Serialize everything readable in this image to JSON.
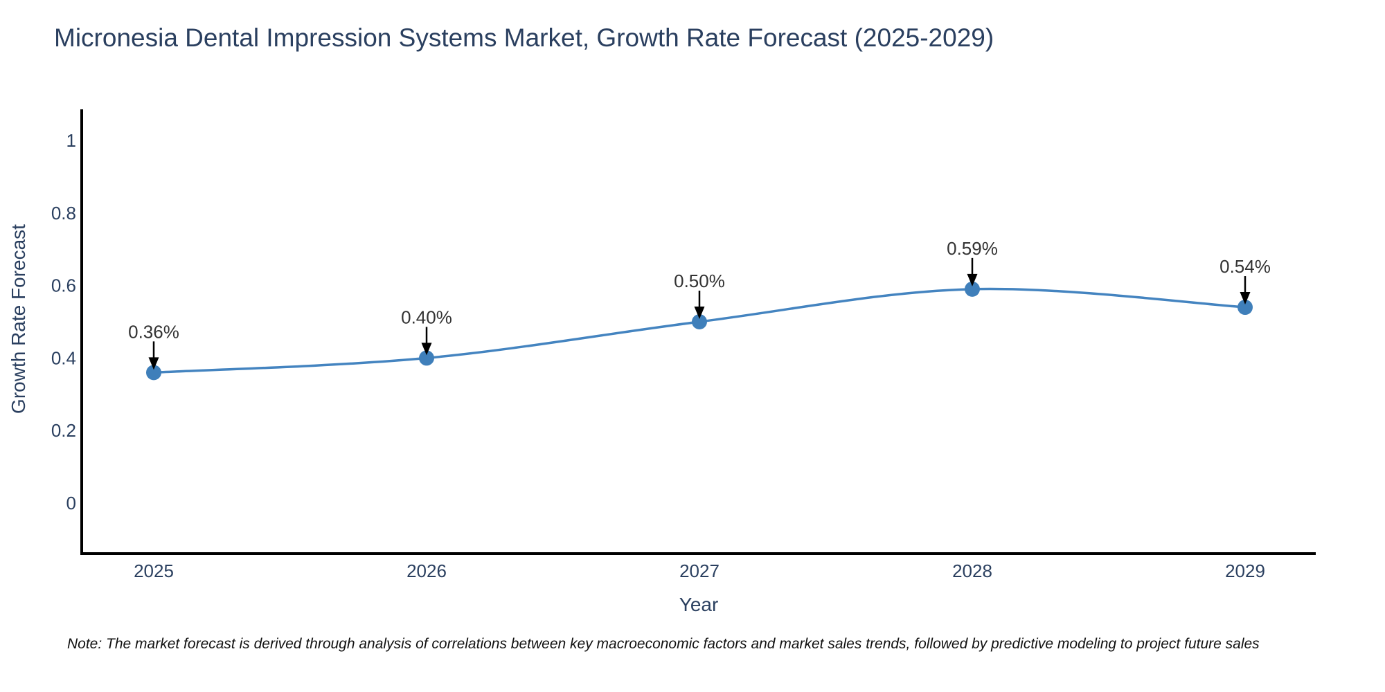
{
  "chart_data": {
    "type": "line",
    "title": "Micronesia Dental Impression Systems Market, Growth Rate Forecast (2025-2029)",
    "xlabel": "Year",
    "ylabel": "Growth Rate Forecast",
    "x": [
      "2025",
      "2026",
      "2027",
      "2028",
      "2029"
    ],
    "series": [
      {
        "name": "Growth Rate Forecast",
        "values": [
          0.36,
          0.4,
          0.5,
          0.59,
          0.54
        ]
      }
    ],
    "point_labels": [
      "0.36%",
      "0.40%",
      "0.50%",
      "0.59%",
      "0.54%"
    ],
    "ytick_labels": [
      "0",
      "0.2",
      "0.4",
      "0.6",
      "0.8",
      "1"
    ],
    "ytick_values": [
      0,
      0.2,
      0.4,
      0.6,
      0.8,
      1
    ],
    "ylim": [
      -0.14,
      1.08
    ],
    "grid": false,
    "legend_position": "none",
    "line_shape": "spline",
    "marker": "circle-with-down-arrow-annotation",
    "colors": {
      "line": "#4484c0",
      "marker": "#3f7fba",
      "axis": "#000000",
      "tick_text": "#2a3f5f",
      "annotation_text": "#333333",
      "annotation_arrow": "#000000",
      "title_text": "#2a3f5f",
      "note_text": "#111111",
      "background": "#ffffff"
    },
    "note": "Note: The market forecast is derived through analysis of correlations between key macroeconomic factors and market sales trends, followed by predictive modeling to project future sales"
  }
}
